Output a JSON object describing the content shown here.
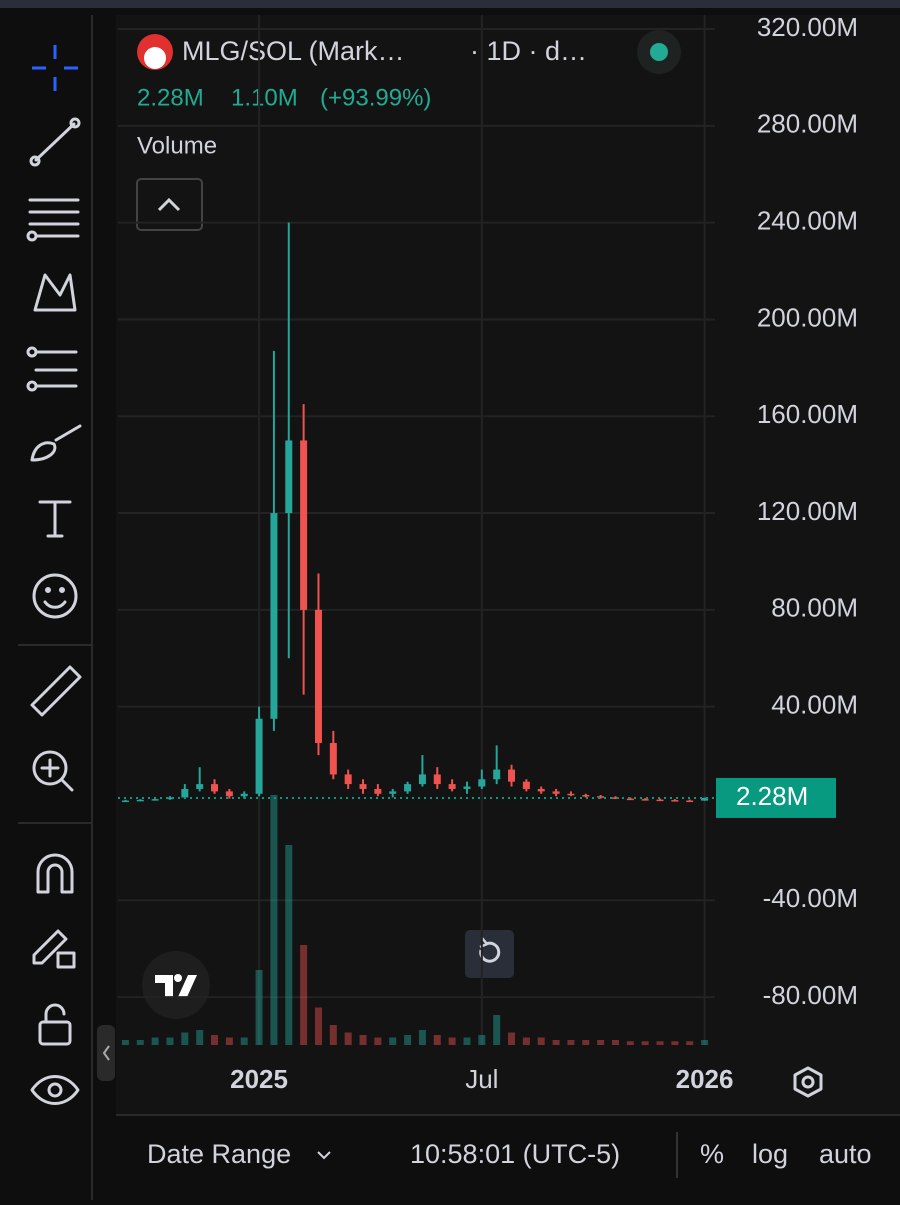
{
  "header": {
    "title": "MLG/SOL (Mark…",
    "interval": "· 1D · d…",
    "last": "2.28M",
    "change": "1.10M",
    "change_pct": "(+93.99%)",
    "indicator": "Volume"
  },
  "chart_data": {
    "type": "candlestick",
    "categories": [
      null,
      null,
      null,
      null,
      null,
      null,
      null,
      null,
      null,
      "2025",
      null,
      null,
      null,
      null,
      null,
      null,
      null,
      null,
      null,
      null,
      null,
      null,
      null,
      null,
      "Jul",
      null,
      null,
      null,
      null,
      null,
      null,
      null,
      null,
      null,
      null,
      null,
      null,
      null,
      null,
      "2026"
    ],
    "series": [
      {
        "name": "MLG/SOL",
        "up_color": "#26a69a",
        "down_color": "#ef5350",
        "ohlc": [
          [
            1,
            1.5,
            0.8,
            1.2
          ],
          [
            1.2,
            1.8,
            1,
            1.5
          ],
          [
            1.5,
            2,
            1.2,
            1.8
          ],
          [
            1.8,
            3,
            1.5,
            2.5
          ],
          [
            2.5,
            8,
            2,
            6
          ],
          [
            6,
            15,
            5,
            8
          ],
          [
            8,
            10,
            4,
            5
          ],
          [
            5,
            6,
            2,
            3
          ],
          [
            3,
            5,
            2,
            4
          ],
          [
            4,
            40,
            3,
            35
          ],
          [
            35,
            187,
            30,
            120
          ],
          [
            120,
            240,
            60,
            150
          ],
          [
            150,
            165,
            45,
            80
          ],
          [
            80,
            95,
            20,
            25
          ],
          [
            25,
            30,
            10,
            12
          ],
          [
            12,
            14,
            6,
            8
          ],
          [
            8,
            10,
            4,
            6
          ],
          [
            6,
            8,
            3,
            4
          ],
          [
            4,
            6,
            2.5,
            5
          ],
          [
            5,
            9,
            4,
            8
          ],
          [
            8,
            20,
            7,
            12
          ],
          [
            12,
            15,
            6,
            8
          ],
          [
            8,
            10,
            5,
            6
          ],
          [
            6,
            9,
            4,
            7
          ],
          [
            7,
            14,
            6,
            10
          ],
          [
            10,
            24,
            8,
            14
          ],
          [
            14,
            16,
            7,
            9
          ],
          [
            9,
            10,
            5,
            6
          ],
          [
            6,
            7,
            4,
            5
          ],
          [
            5,
            6,
            3,
            4
          ],
          [
            4,
            5,
            3,
            3.5
          ],
          [
            3.5,
            4,
            2.5,
            3
          ],
          [
            3,
            3.5,
            2,
            2.5
          ],
          [
            2.5,
            3,
            1.8,
            2
          ],
          [
            2,
            2.5,
            1.5,
            1.8
          ],
          [
            1.8,
            2.2,
            1.4,
            1.6
          ],
          [
            1.6,
            2,
            1.2,
            1.4
          ],
          [
            1.4,
            1.8,
            1.1,
            1.2
          ],
          [
            1.2,
            1.6,
            1,
            1.18
          ],
          [
            1.18,
            2.5,
            1.1,
            2.28
          ]
        ]
      },
      {
        "name": "Volume",
        "axis": "y2",
        "values": [
          2,
          2,
          3,
          3,
          5,
          6,
          4,
          3,
          3,
          30,
          100,
          80,
          40,
          15,
          8,
          5,
          4,
          3,
          3,
          4,
          6,
          4,
          3,
          3,
          4,
          12,
          5,
          3,
          3,
          2,
          2,
          2,
          2,
          2,
          1.5,
          1.5,
          1.5,
          1.5,
          1.5,
          2
        ]
      }
    ],
    "ylim": [
      -99.8,
      325.8
    ],
    "yticks": [
      {
        "value": 320,
        "label": "320.00M"
      },
      {
        "value": 280,
        "label": "280.00M"
      },
      {
        "value": 240,
        "label": "240.00M"
      },
      {
        "value": 200,
        "label": "200.00M"
      },
      {
        "value": 160,
        "label": "160.00M"
      },
      {
        "value": 120,
        "label": "120.00M"
      },
      {
        "value": 80,
        "label": "80.00M"
      },
      {
        "value": 40,
        "label": "40.00M"
      },
      {
        "value": -40,
        "label": "-40.00M"
      },
      {
        "value": -80,
        "label": "-80.00M"
      }
    ],
    "y2lim": [
      0,
      100
    ],
    "last_price": {
      "value": 2.28,
      "label": "2.28M",
      "color": "#089981"
    },
    "grid": true
  },
  "footer": {
    "date_range": "Date Range",
    "time": "10:58:01 (UTC-5)",
    "percent": "%",
    "log": "log",
    "auto": "auto"
  }
}
